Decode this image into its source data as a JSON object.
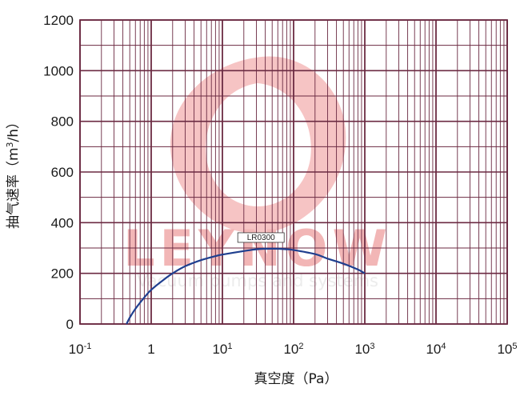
{
  "chart_data": {
    "type": "line",
    "xscale": "log",
    "xlim": [
      0.1,
      100000
    ],
    "ylim": [
      0,
      1200
    ],
    "x_ticks": [
      0.1,
      1,
      10,
      100,
      1000,
      10000,
      100000
    ],
    "x_tick_labels": [
      {
        "base": "10",
        "exp": "-1"
      },
      {
        "base": "1",
        "exp": ""
      },
      {
        "base": "10",
        "exp": "1"
      },
      {
        "base": "10",
        "exp": "2"
      },
      {
        "base": "10",
        "exp": "3"
      },
      {
        "base": "10",
        "exp": "4"
      },
      {
        "base": "10",
        "exp": "5"
      }
    ],
    "y_ticks": [
      0,
      200,
      400,
      600,
      800,
      1000,
      1200
    ],
    "y_tick_labels": [
      "0",
      "200",
      "400",
      "600",
      "800",
      "1000",
      "1200"
    ],
    "xlabel": "真空度（Pa）",
    "ylabel": {
      "prefix": "抽气速率（m",
      "sup": "3",
      "suffix": "/h）"
    },
    "grid": true,
    "colors": {
      "grid": "#6b2a42",
      "series": "#1f3f8f"
    },
    "series": [
      {
        "name": "LR0300",
        "x": [
          0.45,
          0.5,
          0.6,
          0.8,
          1,
          1.5,
          2,
          3,
          5,
          8,
          10,
          20,
          30,
          50,
          80,
          100,
          200,
          300,
          500,
          800,
          1000
        ],
        "y": [
          0,
          25,
          60,
          105,
          135,
          175,
          200,
          228,
          252,
          268,
          274,
          288,
          295,
          297,
          295,
          292,
          276,
          258,
          238,
          215,
          200
        ]
      }
    ]
  },
  "watermark": {
    "brand": "LEYNOW",
    "tagline": "Vacuum pumps and systems"
  }
}
